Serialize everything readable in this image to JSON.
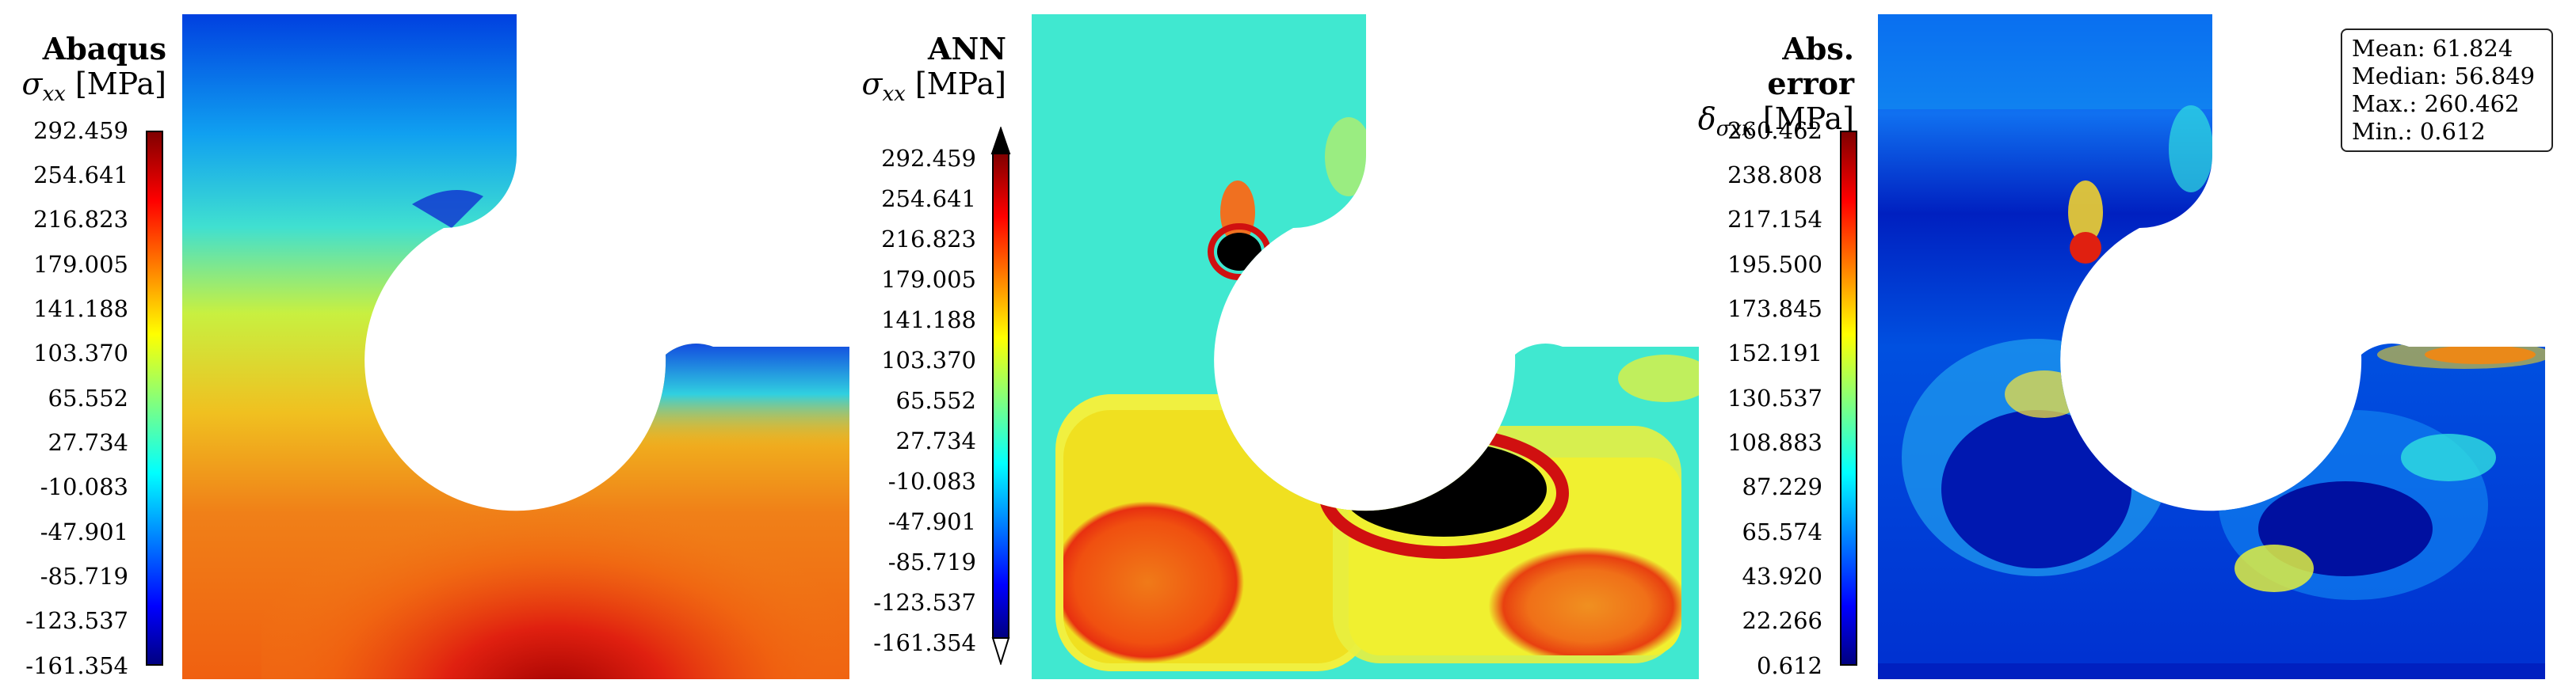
{
  "panels": [
    {
      "title": "Abaqus",
      "quantity": "σ",
      "quantity_sub": "xx",
      "unit": "[MPa]",
      "ticks": [
        "292.459",
        "254.641",
        "216.823",
        "179.005",
        "141.188",
        "103.370",
        "65.552",
        "27.734",
        "-10.083",
        "-47.901",
        "-85.719",
        "-123.537",
        "-161.354"
      ]
    },
    {
      "title": "ANN",
      "quantity": "σ",
      "quantity_sub": "xx",
      "unit": "[MPa]",
      "ticks": [
        "292.459",
        "254.641",
        "216.823",
        "179.005",
        "141.188",
        "103.370",
        "65.552",
        "27.734",
        "-10.083",
        "-47.901",
        "-85.719",
        "-123.537",
        "-161.354"
      ]
    },
    {
      "title": "Abs. error",
      "quantity": "δ",
      "quantity_sub": "σxx",
      "unit": "[MPa]",
      "ticks": [
        "260.462",
        "238.808",
        "217.154",
        "195.500",
        "173.845",
        "152.191",
        "130.537",
        "108.883",
        "87.229",
        "65.574",
        "43.920",
        "22.266",
        "0.612"
      ]
    }
  ],
  "stats": {
    "mean": "Mean: 61.824",
    "median": "Median: 56.849",
    "max": "Max.: 260.462",
    "min": "Min.: 0.612"
  },
  "colormap": "jet"
}
